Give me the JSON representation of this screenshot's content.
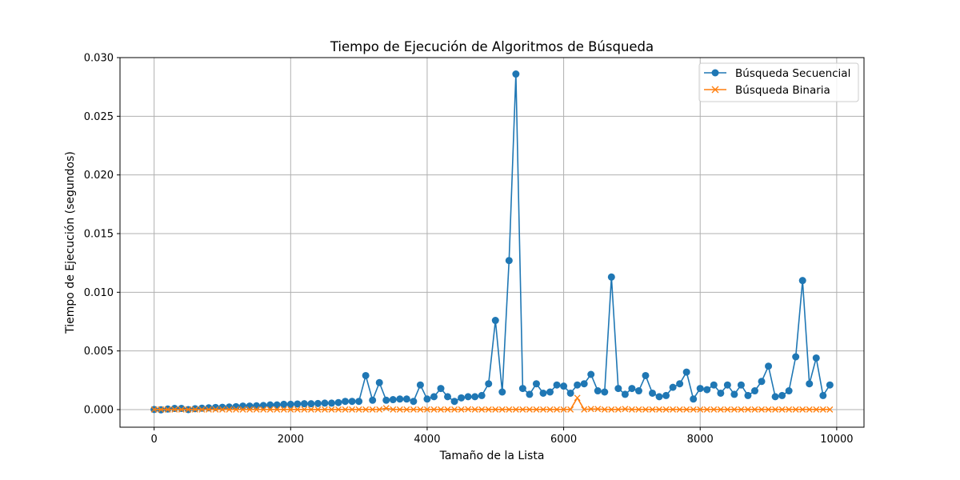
{
  "chart_data": {
    "type": "line",
    "title": "Tiempo de Ejecución de Algoritmos de Búsqueda",
    "xlabel": "Tamaño de la Lista",
    "ylabel": "Tiempo de Ejecución (segundos)",
    "xlim": [
      -500,
      10400
    ],
    "ylim": [
      -0.0015,
      0.03
    ],
    "x_ticks": [
      0,
      2000,
      4000,
      6000,
      8000,
      10000
    ],
    "x_tick_labels": [
      "0",
      "2000",
      "4000",
      "6000",
      "8000",
      "10000"
    ],
    "y_ticks": [
      0.0,
      0.005,
      0.01,
      0.015,
      0.02,
      0.025,
      0.03
    ],
    "y_tick_labels": [
      "0.000",
      "0.005",
      "0.010",
      "0.015",
      "0.020",
      "0.025",
      "0.030"
    ],
    "grid": true,
    "legend": "top-right",
    "x": [
      0,
      100,
      200,
      300,
      400,
      500,
      600,
      700,
      800,
      900,
      1000,
      1100,
      1200,
      1300,
      1400,
      1500,
      1600,
      1700,
      1800,
      1900,
      2000,
      2100,
      2200,
      2300,
      2400,
      2500,
      2600,
      2700,
      2800,
      2900,
      3000,
      3100,
      3200,
      3300,
      3400,
      3500,
      3600,
      3700,
      3800,
      3900,
      4000,
      4100,
      4200,
      4300,
      4400,
      4500,
      4600,
      4700,
      4800,
      4900,
      5000,
      5100,
      5200,
      5300,
      5400,
      5500,
      5600,
      5700,
      5800,
      5900,
      6000,
      6100,
      6200,
      6300,
      6400,
      6500,
      6600,
      6700,
      6800,
      6900,
      7000,
      7100,
      7200,
      7300,
      7400,
      7500,
      7600,
      7700,
      7800,
      7900,
      8000,
      8100,
      8200,
      8300,
      8400,
      8500,
      8600,
      8700,
      8800,
      8900,
      9000,
      9100,
      9200,
      9300,
      9400,
      9500,
      9600,
      9700,
      9800,
      9900
    ],
    "series": [
      {
        "name": "Búsqueda Secuencial",
        "color": "#1f77b4",
        "marker": "circle",
        "values": [
          1e-05,
          -2e-05,
          5e-05,
          0.0001,
          0.0001,
          0.0,
          8e-05,
          0.00012,
          0.00015,
          0.00018,
          0.0002,
          0.00022,
          0.00025,
          0.0003,
          0.0003,
          0.00032,
          0.00035,
          0.0004,
          0.0004,
          0.00045,
          0.00045,
          0.00048,
          0.0005,
          0.0005,
          0.00052,
          0.00055,
          0.00055,
          0.0006,
          0.0007,
          0.0007,
          0.0007,
          0.0029,
          0.0008,
          0.0023,
          0.0008,
          0.00085,
          0.0009,
          0.0009,
          0.0007,
          0.0021,
          0.0009,
          0.0011,
          0.0018,
          0.0011,
          0.0007,
          0.001,
          0.0011,
          0.0011,
          0.0012,
          0.0022,
          0.0076,
          0.0015,
          0.0127,
          0.0286,
          0.0018,
          0.0013,
          0.0022,
          0.0014,
          0.0015,
          0.0021,
          0.002,
          0.0014,
          0.0021,
          0.0022,
          0.003,
          0.0016,
          0.0015,
          0.0113,
          0.0018,
          0.0013,
          0.0018,
          0.0016,
          0.0029,
          0.0014,
          0.0011,
          0.0012,
          0.0019,
          0.0022,
          0.0032,
          0.0009,
          0.0018,
          0.0017,
          0.0021,
          0.0014,
          0.0021,
          0.0013,
          0.0021,
          0.0012,
          0.0016,
          0.0024,
          0.0037,
          0.0011,
          0.0012,
          0.0016,
          0.0045,
          0.011,
          0.0022,
          0.0044,
          0.0012,
          0.0021
        ]
      },
      {
        "name": "Búsqueda Binaria",
        "color": "#ff7f0e",
        "marker": "x",
        "values": [
          1e-05,
          1e-05,
          1e-05,
          1e-05,
          1e-05,
          1e-05,
          1e-05,
          1e-05,
          1e-05,
          1e-05,
          1e-05,
          1e-05,
          1e-05,
          1e-05,
          1e-05,
          1e-05,
          1e-05,
          1e-05,
          1e-05,
          1e-05,
          1e-05,
          1e-05,
          1e-05,
          1e-05,
          1e-05,
          1e-05,
          1e-05,
          1e-05,
          1e-05,
          1e-05,
          1e-05,
          1e-05,
          1e-05,
          1e-05,
          0.00012,
          1e-05,
          1e-05,
          1e-05,
          1e-05,
          1e-05,
          1e-05,
          1e-05,
          1e-05,
          1e-05,
          1e-05,
          1e-05,
          3e-05,
          1e-05,
          1e-05,
          1e-05,
          1e-05,
          1e-05,
          1e-05,
          1e-05,
          1e-05,
          1e-05,
          1e-05,
          1e-05,
          1e-05,
          1e-05,
          1e-05,
          1e-05,
          0.001,
          1e-05,
          5e-05,
          5e-05,
          1e-05,
          1e-05,
          1e-05,
          5e-05,
          1e-05,
          1e-05,
          1e-05,
          1e-05,
          1e-05,
          1e-05,
          1e-05,
          1e-05,
          1e-05,
          1e-05,
          1e-05,
          1e-05,
          1e-05,
          1e-05,
          1e-05,
          1e-05,
          1e-05,
          1e-05,
          1e-05,
          1e-05,
          1e-05,
          1e-05,
          1e-05,
          1e-05,
          1e-05,
          1e-05,
          1e-05,
          1e-05,
          1e-05,
          1e-05
        ]
      }
    ]
  }
}
